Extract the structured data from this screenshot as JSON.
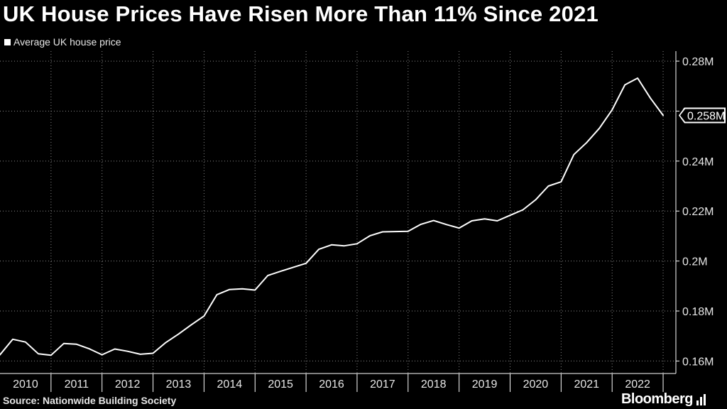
{
  "title": "UK House Prices Have Risen More Than 11% Since 2021",
  "legend": "Average UK house price",
  "source": "Source: Nationwide Building Society",
  "brand": "Bloomberg",
  "colors": {
    "background": "#000000",
    "line": "#ffffff",
    "grid": "#888888"
  },
  "chart_data": {
    "type": "line",
    "title": "UK House Prices Have Risen More Than 11% Since 2021",
    "series": [
      {
        "name": "Average UK house price",
        "x": [
          2009.75,
          2010.0,
          2010.25,
          2010.5,
          2010.75,
          2011.0,
          2011.25,
          2011.5,
          2011.75,
          2012.0,
          2012.25,
          2012.5,
          2012.75,
          2013.0,
          2013.25,
          2013.5,
          2013.75,
          2014.0,
          2014.25,
          2014.5,
          2014.75,
          2015.0,
          2015.25,
          2015.5,
          2015.75,
          2016.0,
          2016.25,
          2016.5,
          2016.75,
          2017.0,
          2017.25,
          2017.5,
          2017.75,
          2018.0,
          2018.25,
          2018.5,
          2018.75,
          2019.0,
          2019.25,
          2019.5,
          2019.75,
          2020.0,
          2020.25,
          2020.5,
          2020.75,
          2021.0,
          2021.25,
          2021.5,
          2021.75,
          2022.0,
          2022.25,
          2022.5,
          2022.75
        ],
        "values": [
          162.5,
          168.7,
          167.6,
          162.9,
          162.3,
          167.0,
          166.7,
          164.9,
          162.5,
          164.8,
          163.9,
          162.7,
          163.1,
          167.4,
          170.8,
          174.5,
          178.0,
          186.5,
          188.6,
          188.9,
          188.4,
          194.2,
          195.9,
          197.5,
          199.1,
          204.7,
          206.5,
          206.1,
          206.9,
          210.1,
          211.7,
          211.8,
          211.9,
          214.7,
          216.2,
          214.6,
          213.2,
          216.1,
          216.9,
          216.1,
          218.3,
          220.5,
          224.5,
          230.0,
          231.7,
          242.6,
          247.4,
          253.1,
          260.5,
          270.5,
          273.2,
          265.2,
          258.3
        ]
      }
    ],
    "x_ticks": [
      "2010",
      "2011",
      "2012",
      "2013",
      "2014",
      "2015",
      "2016",
      "2017",
      "2018",
      "2019",
      "2020",
      "2021",
      "2022"
    ],
    "y_ticks": [
      "0.16M",
      "0.18M",
      "0.2M",
      "0.22M",
      "0.24M",
      "0.26M",
      "0.28M"
    ],
    "y_tick_values": [
      160,
      180,
      200,
      220,
      240,
      260,
      280
    ],
    "ylim": [
      155,
      284
    ],
    "xlim": [
      2009.75,
      2023.0
    ],
    "last_value_label": "0.258M",
    "y_axis_position": "right",
    "grid": true
  }
}
